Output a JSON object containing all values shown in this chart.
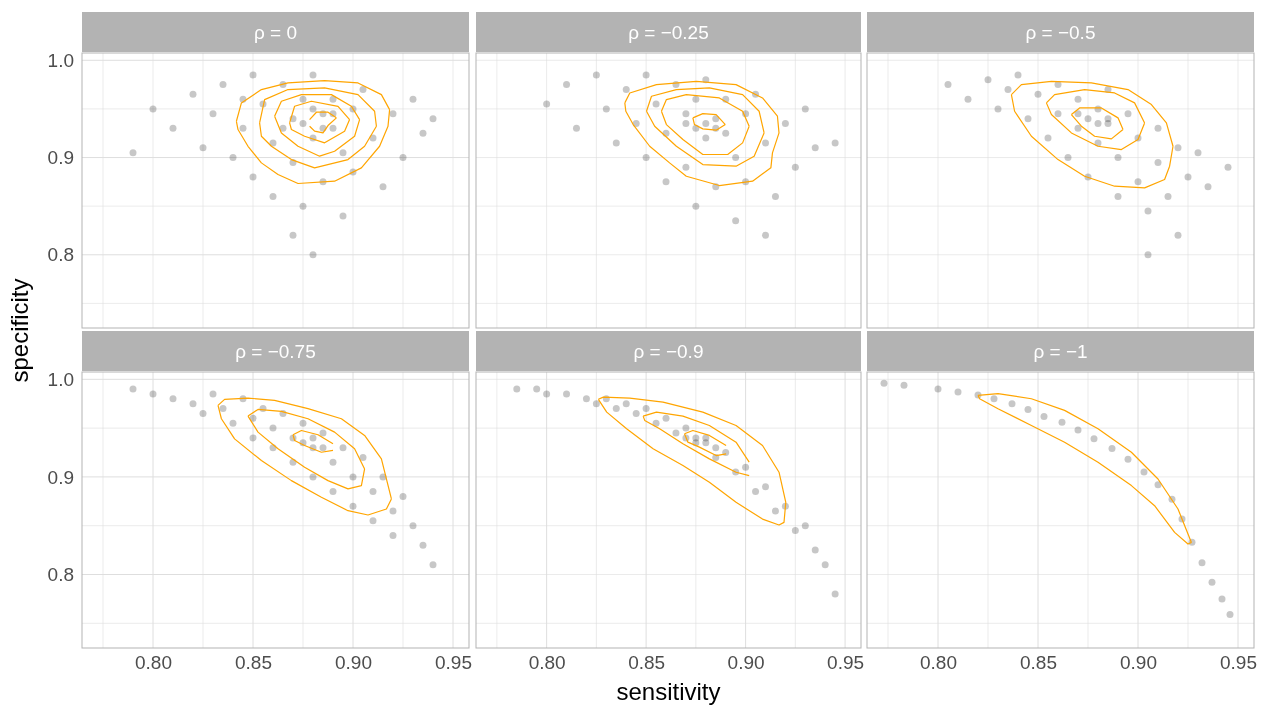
{
  "chart_data": [
    {
      "type": "scatter",
      "title": "ρ = 0",
      "ylabel": "specificity",
      "xlim": [
        0.7645,
        0.958
      ],
      "ylim": [
        0.7247,
        1.0075
      ],
      "tick_labels": "y",
      "grid": true,
      "xticks": [
        {
          "value": 0.775,
          "label": null
        },
        {
          "value": 0.8,
          "label": null
        },
        {
          "value": 0.825,
          "label": null
        },
        {
          "value": 0.85,
          "label": null
        },
        {
          "value": 0.875,
          "label": null
        },
        {
          "value": 0.9,
          "label": null
        },
        {
          "value": 0.925,
          "label": null
        },
        {
          "value": 0.95,
          "label": null
        }
      ],
      "yticks": [
        {
          "value": 0.75,
          "label": null
        },
        {
          "value": 0.8,
          "label": "0.8"
        },
        {
          "value": 0.85,
          "label": null
        },
        {
          "value": 0.9,
          "label": "0.9"
        },
        {
          "value": 0.95,
          "label": null
        },
        {
          "value": 1.0,
          "label": "1.0"
        }
      ],
      "series": [
        {
          "color": "#000000",
          "x": [
            0.8,
            0.81,
            0.82,
            0.825,
            0.83,
            0.835,
            0.84,
            0.845,
            0.85,
            0.85,
            0.855,
            0.86,
            0.86,
            0.865,
            0.87,
            0.87,
            0.875,
            0.875,
            0.88,
            0.88,
            0.885,
            0.885,
            0.89,
            0.89,
            0.895,
            0.895,
            0.9,
            0.9,
            0.905,
            0.91,
            0.915,
            0.92,
            0.925,
            0.93,
            0.935,
            0.94,
            0.87,
            0.88,
            0.79,
            0.845,
            0.865,
            0.875,
            0.885,
            0.89,
            0.88
          ],
          "values": [
            0.95,
            0.93,
            0.965,
            0.91,
            0.945,
            0.975,
            0.9,
            0.93,
            0.985,
            0.88,
            0.955,
            0.915,
            0.86,
            0.975,
            0.94,
            0.895,
            0.96,
            0.85,
            0.92,
            0.985,
            0.945,
            0.875,
            0.93,
            0.96,
            0.905,
            0.84,
            0.95,
            0.885,
            0.97,
            0.92,
            0.87,
            0.945,
            0.9,
            0.96,
            0.925,
            0.94,
            0.82,
            0.8,
            0.905,
            0.96,
            0.93,
            0.935,
            0.93,
            0.945,
            0.95
          ]
        },
        {
          "type": "line",
          "color": "#ffa500",
          "x": [
            0.8417,
            0.8442,
            0.8542,
            0.8675,
            0.8858,
            0.9025,
            0.9142,
            0.9183,
            null,
            0.8417,
            0.8425,
            0.8475,
            0.8542,
            0.8625,
            0.8725,
            0.8908,
            0.9042,
            0.9133,
            0.9175,
            0.9183
          ],
          "values": [
            0.9373,
            0.9562,
            0.9699,
            0.9767,
            0.9791,
            0.9767,
            0.9647,
            0.9493,
            null,
            0.9373,
            0.9288,
            0.9116,
            0.8945,
            0.8825,
            0.8733,
            0.8757,
            0.8894,
            0.9116,
            0.9322,
            0.9493
          ]
        },
        {
          "type": "line",
          "color": "#ffa500",
          "x": [
            0.8533,
            0.8558,
            0.8675,
            0.8858,
            0.9025,
            0.9108,
            0.9117,
            null,
            0.8533,
            0.8542,
            0.8592,
            0.8692,
            0.8808,
            0.8975,
            0.9058,
            0.9117
          ],
          "values": [
            0.9356,
            0.9596,
            0.9699,
            0.9716,
            0.9647,
            0.9476,
            0.9322,
            null,
            0.9356,
            0.9219,
            0.9116,
            0.8979,
            0.8894,
            0.8979,
            0.9116,
            0.9322
          ]
        },
        {
          "type": "line",
          "color": "#ffa500",
          "x": [
            0.8608,
            0.8642,
            0.8742,
            0.8892,
            0.8992,
            0.9033,
            null,
            0.8608,
            0.8642,
            0.8725,
            0.8833,
            0.8908,
            0.9008,
            0.9033
          ],
          "values": [
            0.9425,
            0.9579,
            0.9647,
            0.9647,
            0.9527,
            0.939,
            null,
            0.9425,
            0.9253,
            0.9116,
            0.9014,
            0.9065,
            0.9219,
            0.939
          ]
        },
        {
          "type": "line",
          "color": "#ffa500",
          "x": [
            0.8683,
            0.8708,
            0.8792,
            0.8925,
            0.8983,
            null,
            0.8683,
            0.8692,
            0.8758,
            0.8858,
            0.8958,
            0.8983
          ],
          "values": [
            0.9356,
            0.9527,
            0.9579,
            0.9527,
            0.939,
            null,
            0.9356,
            0.9288,
            0.9219,
            0.9151,
            0.9271,
            0.939
          ]
        },
        {
          "type": "line",
          "color": "#ffa500",
          "x": [
            0.8783,
            0.8817,
            0.8875,
            0.8917,
            null,
            0.8783,
            0.8808,
            0.885,
            0.8875,
            0.8917
          ],
          "values": [
            0.939,
            0.9466,
            0.9466,
            0.9408,
            null,
            0.9322,
            0.9271,
            0.9253,
            0.9329,
            0.9408
          ]
        }
      ]
    },
    {
      "type": "scatter",
      "title": "ρ = −0.25",
      "xlim": [
        0.7645,
        0.958
      ],
      "ylim": [
        0.7247,
        1.0075
      ],
      "tick_labels": false,
      "grid": true,
      "xticks": [
        {
          "value": 0.775,
          "label": null
        },
        {
          "value": 0.8,
          "label": null
        },
        {
          "value": 0.825,
          "label": null
        },
        {
          "value": 0.85,
          "label": null
        },
        {
          "value": 0.875,
          "label": null
        },
        {
          "value": 0.9,
          "label": null
        },
        {
          "value": 0.925,
          "label": null
        },
        {
          "value": 0.95,
          "label": null
        }
      ],
      "yticks": [
        {
          "value": 0.75,
          "label": null
        },
        {
          "value": 0.8,
          "label": null
        },
        {
          "value": 0.85,
          "label": null
        },
        {
          "value": 0.9,
          "label": null
        },
        {
          "value": 0.95,
          "label": null
        },
        {
          "value": 1.0,
          "label": null
        }
      ],
      "series": [
        {
          "color": "#000000",
          "x": [
            0.8,
            0.81,
            0.815,
            0.825,
            0.83,
            0.835,
            0.84,
            0.845,
            0.85,
            0.85,
            0.855,
            0.86,
            0.86,
            0.865,
            0.87,
            0.87,
            0.875,
            0.875,
            0.88,
            0.88,
            0.885,
            0.885,
            0.89,
            0.89,
            0.895,
            0.895,
            0.9,
            0.9,
            0.905,
            0.91,
            0.915,
            0.92,
            0.925,
            0.93,
            0.935,
            0.945,
            0.91,
            0.87,
            0.88,
            0.885,
            0.875
          ],
          "values": [
            0.955,
            0.975,
            0.93,
            0.985,
            0.95,
            0.915,
            0.97,
            0.935,
            0.985,
            0.9,
            0.955,
            0.925,
            0.875,
            0.975,
            0.945,
            0.89,
            0.96,
            0.85,
            0.92,
            0.98,
            0.94,
            0.87,
            0.925,
            0.96,
            0.9,
            0.835,
            0.945,
            0.875,
            0.965,
            0.915,
            0.86,
            0.935,
            0.89,
            0.95,
            0.91,
            0.915,
            0.82,
            0.935,
            0.935,
            0.93,
            0.93
          ]
        },
        {
          "type": "line",
          "color": "#ffa500",
          "x": [
            0.8393,
            0.8418,
            0.8552,
            0.8752,
            0.8952,
            0.9085,
            0.916,
            0.9168,
            null,
            0.8393,
            0.8398,
            0.8435,
            0.8518,
            0.8618,
            0.8702,
            0.8868,
            0.9035,
            0.9127,
            0.9135,
            0.9168
          ],
          "values": [
            0.9562,
            0.9664,
            0.975,
            0.9784,
            0.975,
            0.9613,
            0.9425,
            0.9253,
            null,
            0.9562,
            0.9476,
            0.9339,
            0.9116,
            0.8945,
            0.8808,
            0.8712,
            0.8757,
            0.8894,
            0.9048,
            0.9253
          ]
        },
        {
          "type": "line",
          "color": "#ffa500",
          "x": [
            0.8502,
            0.8527,
            0.8652,
            0.8818,
            0.8985,
            0.9068,
            0.9093,
            null,
            0.8502,
            0.8543,
            0.8652,
            0.8785,
            0.8952,
            0.9043,
            0.9093
          ],
          "values": [
            0.9476,
            0.963,
            0.9699,
            0.9716,
            0.9647,
            0.9476,
            0.9253,
            null,
            0.9476,
            0.9322,
            0.9116,
            0.8928,
            0.8911,
            0.9014,
            0.9253
          ]
        },
        {
          "type": "line",
          "color": "#ffa500",
          "x": [
            0.8577,
            0.8602,
            0.8702,
            0.8868,
            0.8985,
            0.9018,
            null,
            0.8577,
            0.8602,
            0.8685,
            0.8785,
            0.891,
            0.8985,
            0.9018
          ],
          "values": [
            0.9476,
            0.9596,
            0.9647,
            0.9613,
            0.9476,
            0.9322,
            null,
            0.9476,
            0.9339,
            0.9185,
            0.9031,
            0.9031,
            0.9151,
            0.9322
          ]
        },
        {
          "type": "line",
          "color": "#ffa500",
          "x": [
            0.8735,
            0.8785,
            0.8852,
            0.8898,
            null,
            0.8735,
            0.8743,
            0.8785,
            0.8852,
            0.8898
          ],
          "values": [
            0.9408,
            0.9452,
            0.9442,
            0.9339,
            null,
            0.9408,
            0.9339,
            0.9295,
            0.9281,
            0.9339
          ]
        }
      ]
    },
    {
      "type": "scatter",
      "title": "ρ = −0.5",
      "xlim": [
        0.7645,
        0.958
      ],
      "ylim": [
        0.7247,
        1.0075
      ],
      "tick_labels": false,
      "grid": true,
      "xticks": [
        {
          "value": 0.775,
          "label": null
        },
        {
          "value": 0.8,
          "label": null
        },
        {
          "value": 0.825,
          "label": null
        },
        {
          "value": 0.85,
          "label": null
        },
        {
          "value": 0.875,
          "label": null
        },
        {
          "value": 0.9,
          "label": null
        },
        {
          "value": 0.925,
          "label": null
        },
        {
          "value": 0.95,
          "label": null
        }
      ],
      "yticks": [
        {
          "value": 0.75,
          "label": null
        },
        {
          "value": 0.8,
          "label": null
        },
        {
          "value": 0.85,
          "label": null
        },
        {
          "value": 0.9,
          "label": null
        },
        {
          "value": 0.95,
          "label": null
        },
        {
          "value": 1.0,
          "label": null
        }
      ],
      "series": [
        {
          "color": "#000000",
          "x": [
            0.805,
            0.815,
            0.825,
            0.83,
            0.835,
            0.84,
            0.845,
            0.85,
            0.855,
            0.86,
            0.86,
            0.865,
            0.87,
            0.87,
            0.875,
            0.88,
            0.88,
            0.885,
            0.885,
            0.89,
            0.89,
            0.895,
            0.9,
            0.9,
            0.905,
            0.91,
            0.91,
            0.915,
            0.92,
            0.925,
            0.93,
            0.935,
            0.945,
            0.92,
            0.905,
            0.875,
            0.88,
            0.885,
            0.87
          ],
          "values": [
            0.975,
            0.96,
            0.98,
            0.95,
            0.97,
            0.985,
            0.94,
            0.965,
            0.92,
            0.975,
            0.945,
            0.9,
            0.96,
            0.93,
            0.88,
            0.95,
            0.915,
            0.97,
            0.935,
            0.9,
            0.86,
            0.945,
            0.92,
            0.875,
            0.845,
            0.93,
            0.895,
            0.86,
            0.91,
            0.88,
            0.905,
            0.87,
            0.89,
            0.82,
            0.8,
            0.94,
            0.935,
            0.94,
            0.945
          ]
        },
        {
          "type": "line",
          "color": "#ffa500",
          "x": [
            0.8367,
            0.8417,
            0.8567,
            0.8767,
            0.895,
            0.9067,
            0.9142,
            0.9175,
            null,
            0.8367,
            0.8383,
            0.8467,
            0.86,
            0.8733,
            0.8883,
            0.9033,
            0.9133,
            0.9158,
            0.9175
          ],
          "values": [
            0.9647,
            0.975,
            0.9784,
            0.9767,
            0.9699,
            0.9545,
            0.9356,
            0.9116,
            null,
            0.9647,
            0.9476,
            0.9219,
            0.8979,
            0.8808,
            0.8705,
            0.8688,
            0.8774,
            0.8911,
            0.9116
          ]
        },
        {
          "type": "line",
          "color": "#ffa500",
          "x": [
            0.8542,
            0.8583,
            0.8733,
            0.8883,
            0.8983,
            0.9033,
            null,
            0.8542,
            0.8567,
            0.8667,
            0.88,
            0.8917,
            0.9,
            0.9033
          ],
          "values": [
            0.9562,
            0.9647,
            0.9699,
            0.9664,
            0.9562,
            0.9356,
            null,
            0.9562,
            0.9442,
            0.9253,
            0.9116,
            0.9082,
            0.9185,
            0.9356
          ]
        },
        {
          "type": "line",
          "color": "#ffa500",
          "x": [
            0.8667,
            0.8708,
            0.8817,
            0.89,
            0.8925,
            null,
            0.8667,
            0.8717,
            0.8783,
            0.8867,
            0.8925
          ],
          "values": [
            0.9442,
            0.951,
            0.951,
            0.9408,
            0.9288,
            null,
            0.9442,
            0.9322,
            0.9219,
            0.9192,
            0.9288
          ]
        }
      ]
    },
    {
      "type": "scatter",
      "title": "ρ = −0.75",
      "xlim": [
        0.7645,
        0.958
      ],
      "ylim": [
        0.7247,
        1.0075
      ],
      "grid": true,
      "xticks": [
        {
          "value": 0.775,
          "label": null
        },
        {
          "value": 0.8,
          "label": "0.80"
        },
        {
          "value": 0.825,
          "label": null
        },
        {
          "value": 0.85,
          "label": "0.85"
        },
        {
          "value": 0.875,
          "label": null
        },
        {
          "value": 0.9,
          "label": "0.90"
        },
        {
          "value": 0.925,
          "label": null
        },
        {
          "value": 0.95,
          "label": "0.95"
        }
      ],
      "yticks": [
        {
          "value": 0.75,
          "label": null
        },
        {
          "value": 0.8,
          "label": "0.8"
        },
        {
          "value": 0.85,
          "label": null
        },
        {
          "value": 0.9,
          "label": "0.9"
        },
        {
          "value": 0.95,
          "label": null
        },
        {
          "value": 1.0,
          "label": "1.0"
        }
      ],
      "series": [
        {
          "color": "#000000",
          "x": [
            0.79,
            0.8,
            0.81,
            0.82,
            0.825,
            0.83,
            0.835,
            0.84,
            0.845,
            0.85,
            0.85,
            0.855,
            0.86,
            0.86,
            0.865,
            0.87,
            0.87,
            0.875,
            0.88,
            0.88,
            0.885,
            0.89,
            0.89,
            0.895,
            0.9,
            0.9,
            0.905,
            0.91,
            0.91,
            0.915,
            0.92,
            0.92,
            0.925,
            0.93,
            0.935,
            0.94,
            0.875,
            0.88,
            0.885
          ],
          "values": [
            0.99,
            0.985,
            0.98,
            0.975,
            0.965,
            0.985,
            0.97,
            0.955,
            0.98,
            0.96,
            0.94,
            0.97,
            0.95,
            0.93,
            0.965,
            0.94,
            0.915,
            0.955,
            0.93,
            0.9,
            0.945,
            0.915,
            0.885,
            0.93,
            0.9,
            0.87,
            0.92,
            0.885,
            0.855,
            0.9,
            0.865,
            0.84,
            0.88,
            0.85,
            0.83,
            0.81,
            0.935,
            0.94,
            0.93
          ]
        },
        {
          "type": "line",
          "color": "#ffa500",
          "x": [
            0.8325,
            0.8358,
            0.8475,
            0.8608,
            0.8775,
            0.8942,
            0.9058,
            0.9142,
            0.9192,
            null,
            0.8325,
            0.8342,
            0.8408,
            0.8542,
            0.8692,
            0.8842,
            0.8975,
            0.9075,
            0.9167,
            0.9192
          ],
          "values": [
            0.9733,
            0.9795,
            0.9808,
            0.9784,
            0.9699,
            0.9596,
            0.9425,
            0.9185,
            0.8774,
            null,
            0.9733,
            0.9596,
            0.939,
            0.9168,
            0.8962,
            0.8791,
            0.8654,
            0.861,
            0.8671,
            0.8774
          ]
        },
        {
          "type": "line",
          "color": "#ffa500",
          "x": [
            0.8475,
            0.8525,
            0.8642,
            0.8775,
            0.8908,
            0.9008,
            0.9058,
            null,
            0.8475,
            0.8525,
            0.8625,
            0.8758,
            0.8875,
            0.8975,
            0.9042,
            0.9058
          ],
          "values": [
            0.9623,
            0.9692,
            0.9671,
            0.9596,
            0.9459,
            0.9288,
            0.9082,
            null,
            0.9623,
            0.9459,
            0.9288,
            0.9099,
            0.8962,
            0.8877,
            0.8911,
            0.9082
          ]
        },
        {
          "type": "line",
          "color": "#ffa500",
          "x": [
            0.87,
            0.8742,
            0.8825,
            0.89,
            null,
            0.87,
            0.8708,
            0.8758,
            0.8842,
            0.89
          ],
          "values": [
            0.9432,
            0.9476,
            0.9432,
            0.9339,
            null,
            0.9432,
            0.9373,
            0.9322,
            0.9253,
            0.9271
          ]
        }
      ]
    },
    {
      "type": "scatter",
      "title": "ρ = −0.9",
      "xlabel": "sensitivity",
      "xlim": [
        0.7645,
        0.958
      ],
      "ylim": [
        0.7247,
        1.0075
      ],
      "tick_labels": "x",
      "grid": true,
      "xticks": [
        {
          "value": 0.775,
          "label": null
        },
        {
          "value": 0.8,
          "label": "0.80"
        },
        {
          "value": 0.825,
          "label": null
        },
        {
          "value": 0.85,
          "label": "0.85"
        },
        {
          "value": 0.875,
          "label": null
        },
        {
          "value": 0.9,
          "label": "0.90"
        },
        {
          "value": 0.925,
          "label": null
        },
        {
          "value": 0.95,
          "label": "0.95"
        }
      ],
      "yticks": [
        {
          "value": 0.75,
          "label": null
        },
        {
          "value": 0.8,
          "label": null
        },
        {
          "value": 0.85,
          "label": null
        },
        {
          "value": 0.9,
          "label": null
        },
        {
          "value": 0.95,
          "label": null
        },
        {
          "value": 1.0,
          "label": null
        }
      ],
      "series": [
        {
          "color": "#000000",
          "x": [
            0.785,
            0.795,
            0.8,
            0.81,
            0.82,
            0.825,
            0.83,
            0.835,
            0.84,
            0.845,
            0.85,
            0.855,
            0.86,
            0.865,
            0.87,
            0.875,
            0.88,
            0.885,
            0.89,
            0.895,
            0.9,
            0.905,
            0.91,
            0.915,
            0.92,
            0.925,
            0.93,
            0.935,
            0.94,
            0.945,
            0.875,
            0.88,
            0.87,
            0.885
          ],
          "values": [
            0.99,
            0.99,
            0.985,
            0.985,
            0.98,
            0.975,
            0.98,
            0.97,
            0.975,
            0.965,
            0.97,
            0.955,
            0.96,
            0.945,
            0.95,
            0.935,
            0.94,
            0.92,
            0.925,
            0.905,
            0.91,
            0.885,
            0.89,
            0.865,
            0.87,
            0.845,
            0.85,
            0.825,
            0.81,
            0.78,
            0.94,
            0.935,
            0.94,
            0.93
          ]
        },
        {
          "type": "line",
          "color": "#ffa500",
          "x": [
            0.826,
            0.8285,
            0.8418,
            0.8585,
            0.8785,
            0.8952,
            0.9085,
            0.9168,
            0.9202,
            null,
            0.826,
            0.8302,
            0.8402,
            0.8535,
            0.8685,
            0.8818,
            0.8952,
            0.9085,
            0.9168,
            0.9193,
            0.9202
          ],
          "values": [
            0.9795,
            0.9818,
            0.9808,
            0.9767,
            0.9664,
            0.9527,
            0.9322,
            0.9048,
            0.874,
            null,
            0.9795,
            0.9664,
            0.9493,
            0.9288,
            0.9116,
            0.8945,
            0.874,
            0.8568,
            0.8507,
            0.8534,
            0.874
          ]
        },
        {
          "type": "line",
          "color": "#ffa500",
          "x": [
            0.8485,
            0.8552,
            0.8685,
            0.8818,
            0.8952,
            0.9018,
            null,
            0.8485,
            0.8493,
            0.8568,
            0.8685,
            0.8818,
            0.8952,
            0.9018
          ],
          "values": [
            0.9623,
            0.9664,
            0.9623,
            0.9527,
            0.9356,
            0.9151,
            null,
            0.9623,
            0.9579,
            0.9493,
            0.9339,
            0.9185,
            0.9048,
            0.9014
          ]
        },
        {
          "type": "line",
          "color": "#ffa500",
          "x": [
            0.8693,
            0.8735,
            0.8818,
            0.8902,
            null,
            0.8693,
            0.871,
            0.8768,
            0.8852,
            0.8902
          ],
          "values": [
            0.9442,
            0.9476,
            0.9425,
            0.9322,
            null,
            0.9442,
            0.9356,
            0.9305,
            0.9219,
            0.9236
          ]
        }
      ]
    },
    {
      "type": "scatter",
      "title": "ρ = −1",
      "xlim": [
        0.7645,
        0.958
      ],
      "ylim": [
        0.7247,
        1.0075
      ],
      "tick_labels": "x",
      "grid": true,
      "xticks": [
        {
          "value": 0.775,
          "label": null
        },
        {
          "value": 0.8,
          "label": "0.80"
        },
        {
          "value": 0.825,
          "label": null
        },
        {
          "value": 0.85,
          "label": "0.85"
        },
        {
          "value": 0.875,
          "label": null
        },
        {
          "value": 0.9,
          "label": "0.90"
        },
        {
          "value": 0.925,
          "label": null
        },
        {
          "value": 0.95,
          "label": "0.95"
        }
      ],
      "yticks": [
        {
          "value": 0.75,
          "label": null
        },
        {
          "value": 0.8,
          "label": null
        },
        {
          "value": 0.85,
          "label": null
        },
        {
          "value": 0.9,
          "label": null
        },
        {
          "value": 0.95,
          "label": null
        },
        {
          "value": 1.0,
          "label": null
        }
      ],
      "series": [
        {
          "color": "#000000",
          "x": [
            0.773,
            0.783,
            0.8,
            0.81,
            0.82,
            0.828,
            0.837,
            0.845,
            0.853,
            0.862,
            0.87,
            0.878,
            0.887,
            0.895,
            0.903,
            0.91,
            0.917,
            0.922,
            0.927,
            0.932,
            0.937,
            0.942,
            0.946
          ],
          "values": [
            0.996,
            0.994,
            0.99,
            0.987,
            0.984,
            0.98,
            0.975,
            0.969,
            0.962,
            0.956,
            0.948,
            0.939,
            0.929,
            0.918,
            0.905,
            0.892,
            0.877,
            0.857,
            0.833,
            0.812,
            0.792,
            0.775,
            0.759
          ]
        },
        {
          "type": "line",
          "color": "#ffa500",
          "x": [
            0.82,
            0.83,
            0.8467,
            0.8633,
            0.88,
            0.8967,
            0.91,
            0.92,
            0.9267,
            null,
            0.82,
            0.8208,
            0.83,
            0.8467,
            0.8633,
            0.88,
            0.8967,
            0.9083,
            0.9183,
            0.925,
            0.9267
          ],
          "values": [
            0.9836,
            0.9853,
            0.9801,
            0.9682,
            0.9493,
            0.9253,
            0.8979,
            0.8671,
            0.8329,
            null,
            0.9836,
            0.9801,
            0.9699,
            0.9527,
            0.9356,
            0.9151,
            0.8911,
            0.8705,
            0.8432,
            0.8312,
            0.8329
          ]
        }
      ]
    }
  ]
}
